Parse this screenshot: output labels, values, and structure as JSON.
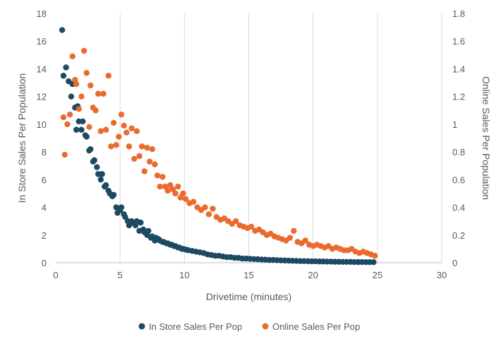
{
  "chart_data": {
    "type": "scatter",
    "title": "",
    "xlabel": "Drivetime (minutes)",
    "ylabel": "In Store Sales Per Population",
    "y2label": "Online Sales Per Population",
    "xlim": [
      0,
      30
    ],
    "ylim": [
      0,
      18
    ],
    "y2lim": [
      0,
      1.8
    ],
    "x_ticks": [
      "0",
      "5",
      "10",
      "15",
      "20",
      "25",
      "30"
    ],
    "y_ticks": [
      "0",
      "2",
      "4",
      "6",
      "8",
      "10",
      "12",
      "14",
      "16",
      "18"
    ],
    "y2_ticks": [
      "0",
      "0.2",
      "0.4",
      "0.6",
      "0.8",
      "1",
      "1.2",
      "1.4",
      "1.6",
      "1.8"
    ],
    "grid": "vertical",
    "legend_position": "bottom",
    "series": [
      {
        "name": "In Store Sales Per Pop",
        "axis": "left",
        "color": "#1B4A61",
        "x": [
          0.5,
          0.6,
          0.8,
          1.0,
          1.2,
          1.3,
          1.5,
          1.6,
          1.7,
          1.8,
          2.0,
          2.1,
          2.3,
          2.4,
          2.6,
          2.7,
          2.9,
          3.0,
          3.2,
          3.3,
          3.5,
          3.6,
          3.8,
          3.9,
          4.1,
          4.2,
          4.4,
          4.5,
          4.7,
          4.8,
          5.0,
          5.1,
          5.3,
          5.4,
          5.6,
          5.7,
          5.9,
          6.0,
          6.2,
          6.3,
          6.5,
          6.6,
          6.8,
          6.9,
          7.1,
          7.2,
          7.4,
          7.5,
          7.7,
          7.8,
          8.0,
          8.1,
          8.3,
          8.4,
          8.6,
          8.7,
          8.9,
          9.0,
          9.2,
          9.3,
          9.5,
          9.6,
          9.8,
          9.9,
          10.1,
          10.3,
          10.6,
          10.9,
          11.2,
          11.5,
          11.8,
          12.1,
          12.4,
          12.7,
          13.0,
          13.3,
          13.6,
          13.9,
          14.2,
          14.5,
          14.8,
          15.1,
          15.4,
          15.7,
          16.0,
          16.3,
          16.6,
          16.9,
          17.2,
          17.5,
          17.8,
          18.1,
          18.4,
          18.7,
          19.0,
          19.3,
          19.6,
          19.9,
          20.2,
          20.5,
          20.8,
          21.1,
          21.4,
          21.7,
          22.0,
          22.3,
          22.6,
          22.9,
          23.2,
          23.5,
          23.8,
          24.1,
          24.4,
          24.7
        ],
        "y": [
          16.8,
          13.5,
          14.1,
          13.1,
          12.0,
          12.9,
          11.2,
          9.6,
          11.3,
          10.2,
          9.6,
          10.2,
          9.2,
          9.1,
          8.1,
          8.2,
          7.3,
          7.4,
          6.9,
          6.4,
          6.0,
          6.4,
          5.5,
          5.6,
          5.2,
          5.0,
          4.8,
          4.9,
          4.0,
          3.6,
          3.8,
          4.0,
          3.5,
          3.3,
          3.0,
          2.7,
          3.0,
          2.9,
          2.7,
          3.0,
          2.3,
          2.9,
          2.4,
          2.2,
          2.0,
          2.3,
          1.8,
          1.9,
          1.6,
          1.8,
          1.7,
          1.6,
          1.5,
          1.5,
          1.4,
          1.4,
          1.3,
          1.3,
          1.2,
          1.2,
          1.1,
          1.1,
          1.0,
          1.0,
          0.95,
          0.9,
          0.85,
          0.8,
          0.75,
          0.7,
          0.6,
          0.55,
          0.5,
          0.5,
          0.45,
          0.4,
          0.4,
          0.35,
          0.35,
          0.3,
          0.3,
          0.28,
          0.26,
          0.25,
          0.23,
          0.22,
          0.2,
          0.2,
          0.18,
          0.17,
          0.16,
          0.15,
          0.14,
          0.13,
          0.12,
          0.12,
          0.11,
          0.1,
          0.1,
          0.09,
          0.09,
          0.08,
          0.08,
          0.07,
          0.07,
          0.06,
          0.06,
          0.06,
          0.05,
          0.05,
          0.05,
          0.04,
          0.04,
          0.04
        ]
      },
      {
        "name": "Online Sales Per Pop",
        "axis": "right",
        "color": "#EB6B2F",
        "x": [
          0.6,
          0.7,
          0.9,
          1.1,
          1.3,
          1.5,
          1.6,
          1.8,
          2.0,
          2.2,
          2.4,
          2.6,
          2.7,
          2.9,
          3.1,
          3.3,
          3.5,
          3.7,
          3.9,
          4.1,
          4.3,
          4.5,
          4.7,
          4.9,
          5.1,
          5.3,
          5.5,
          5.7,
          5.9,
          6.1,
          6.3,
          6.5,
          6.7,
          6.9,
          7.1,
          7.3,
          7.5,
          7.7,
          7.9,
          8.1,
          8.3,
          8.5,
          8.7,
          8.9,
          9.1,
          9.3,
          9.5,
          9.7,
          9.9,
          10.1,
          10.4,
          10.7,
          11.0,
          11.3,
          11.6,
          11.9,
          12.2,
          12.5,
          12.8,
          13.1,
          13.4,
          13.7,
          14.0,
          14.3,
          14.6,
          14.9,
          15.2,
          15.5,
          15.8,
          16.1,
          16.4,
          16.7,
          17.0,
          17.3,
          17.6,
          17.9,
          18.2,
          18.5,
          18.8,
          19.1,
          19.4,
          19.7,
          20.0,
          20.3,
          20.6,
          20.9,
          21.2,
          21.5,
          21.8,
          22.1,
          22.4,
          22.7,
          23.0,
          23.3,
          23.6,
          23.9,
          24.2,
          24.5,
          24.8
        ],
        "y": [
          1.05,
          0.78,
          1.0,
          1.07,
          1.49,
          1.32,
          1.29,
          1.11,
          1.2,
          1.53,
          1.37,
          0.98,
          1.28,
          1.12,
          1.1,
          1.22,
          0.95,
          1.22,
          0.96,
          1.35,
          0.84,
          1.01,
          0.85,
          0.91,
          1.07,
          0.99,
          0.94,
          0.84,
          0.97,
          0.75,
          0.95,
          0.77,
          0.84,
          0.66,
          0.83,
          0.73,
          0.82,
          0.71,
          0.63,
          0.55,
          0.62,
          0.55,
          0.52,
          0.56,
          0.53,
          0.5,
          0.55,
          0.47,
          0.5,
          0.46,
          0.43,
          0.44,
          0.4,
          0.38,
          0.4,
          0.35,
          0.39,
          0.33,
          0.31,
          0.32,
          0.3,
          0.28,
          0.3,
          0.27,
          0.26,
          0.25,
          0.26,
          0.23,
          0.24,
          0.22,
          0.2,
          0.21,
          0.19,
          0.18,
          0.17,
          0.16,
          0.18,
          0.23,
          0.15,
          0.14,
          0.16,
          0.13,
          0.12,
          0.13,
          0.12,
          0.11,
          0.12,
          0.1,
          0.11,
          0.1,
          0.09,
          0.09,
          0.1,
          0.08,
          0.07,
          0.08,
          0.07,
          0.06,
          0.05
        ]
      }
    ]
  }
}
